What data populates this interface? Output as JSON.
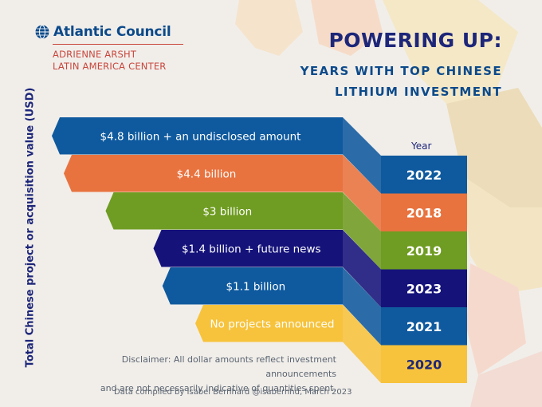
{
  "header": {
    "org_name": "Atlantic Council",
    "center_line1": "ADRIENNE ARSHT",
    "center_line2": "LATIN AMERICA CENTER",
    "title": "POWERING UP:",
    "subtitle_line1": "YEARS WITH TOP CHINESE",
    "subtitle_line2": "LITHIUM INVESTMENT"
  },
  "footer": {
    "disclaimer_line1": "Disclaimer: All dollar amounts reflect investment announcements",
    "disclaimer_line2": "and are not necessarily indicative of quantities spent.",
    "credit": "Data compiled by Isabel Bernhard @isabernhd, March 2023"
  },
  "colors": {
    "dark_blue": "#0f5a9e",
    "orange": "#e8733f",
    "green": "#6f9c22",
    "navy": "#15137a",
    "yellow": "#f7c33c",
    "title_navy": "#1d2679",
    "logo_blue": "#0c4a8a",
    "logo_red": "#c9463c"
  },
  "icons": {
    "logo": "globe-icon"
  },
  "chart_data": {
    "type": "bar",
    "orientation": "horizontal",
    "ylabel": "Total Chinese project or acquisition value (USD)",
    "year_header": "Year",
    "categories": [
      "2022",
      "2018",
      "2019",
      "2023",
      "2021",
      "2020"
    ],
    "values": [
      4.8,
      4.4,
      3.0,
      1.4,
      1.1,
      0
    ],
    "unit": "USD billion",
    "labels": [
      "$4.8 billion + an undisclosed amount",
      "$4.4 billion",
      "$3 billion",
      "$1.4 billion + future news",
      "$1.1 billion",
      "No projects announced"
    ],
    "bar_colors": [
      "#0f5a9e",
      "#e8733f",
      "#6f9c22",
      "#15137a",
      "#0f5a9e",
      "#f7c33c"
    ],
    "legend": "none",
    "grid": false
  }
}
